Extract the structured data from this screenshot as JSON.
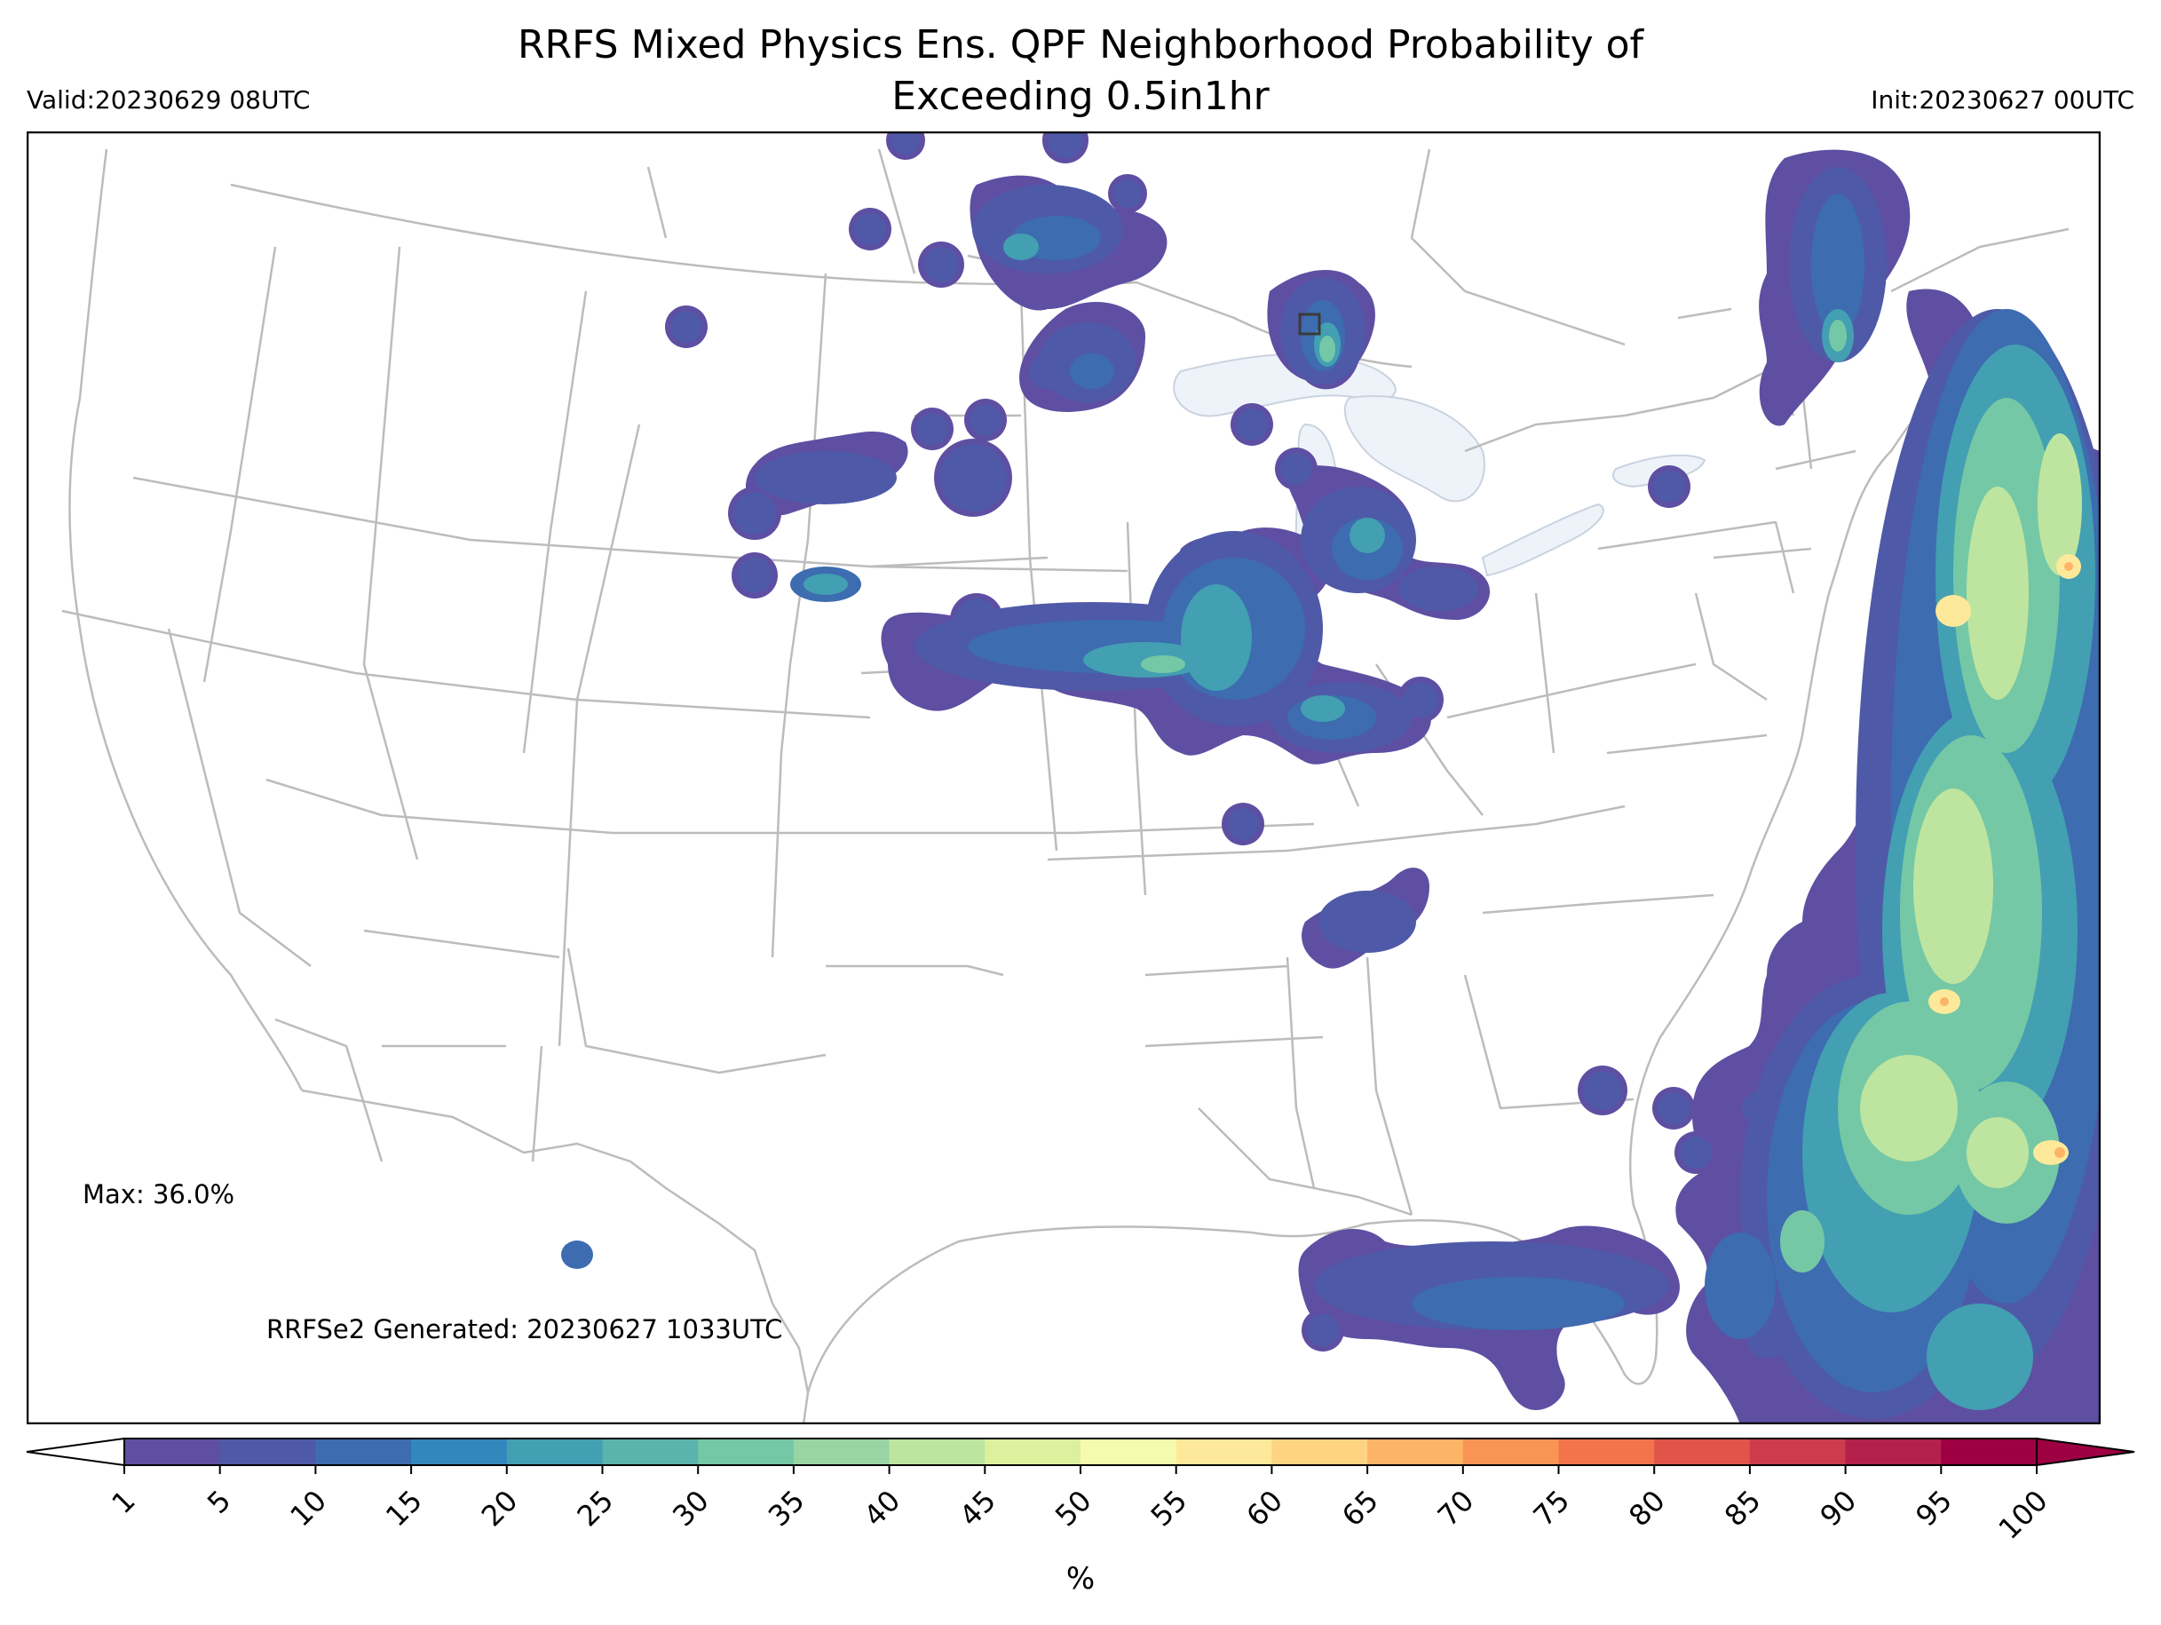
{
  "title_line1": "RRFS Mixed Physics Ens. QPF Neighborhood Probability of",
  "title_line2": "Exceeding 0.5in1hr",
  "valid": "Valid:20230629 08UTC",
  "init": "Init:20230627 00UTC",
  "max_label": "Max: 36.0%",
  "generated": "RRFSe2 Generated: 20230627 1033UTC",
  "colorbar": {
    "unit": "%",
    "ticks": [
      "1",
      "5",
      "10",
      "15",
      "20",
      "25",
      "30",
      "35",
      "40",
      "45",
      "50",
      "55",
      "60",
      "65",
      "70",
      "75",
      "80",
      "85",
      "90",
      "95",
      "100"
    ],
    "colors": [
      "#5e4fa2",
      "#4e5aa7",
      "#3d6cb0",
      "#3288bd",
      "#439fb2",
      "#5ab4ab",
      "#75c8a5",
      "#99d5a4",
      "#bee5a0",
      "#dcf09e",
      "#f5fbae",
      "#fee99a",
      "#fed382",
      "#fdb466",
      "#f99455",
      "#f2744b",
      "#e1544a",
      "#cc3c4d",
      "#b2204b",
      "#9e0142"
    ],
    "under_color": "#ffffff",
    "over_color": "#9e0142"
  },
  "map": {
    "background": "#ffffff",
    "boundary_color": "#bcbcbc",
    "lake_color": "#eef3fa",
    "box_color": "#3a3a3a"
  }
}
